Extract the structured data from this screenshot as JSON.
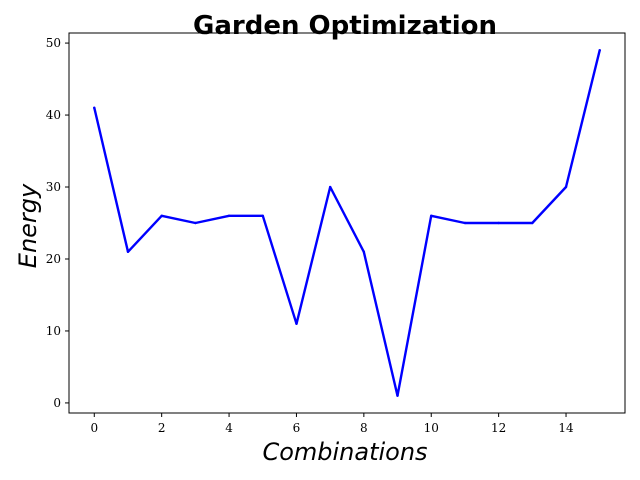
{
  "chart_data": {
    "type": "line",
    "title": "Garden Optimization",
    "xlabel": "Combinations",
    "ylabel": "Energy",
    "xlim": [
      -0.75,
      15.75
    ],
    "ylim": [
      -1.4,
      51.4
    ],
    "xticks": [
      0,
      2,
      4,
      6,
      8,
      10,
      12,
      14
    ],
    "yticks": [
      0,
      10,
      20,
      30,
      40,
      50
    ],
    "grid": false,
    "series": [
      {
        "color": "#0000ff",
        "x": [
          0,
          1,
          2,
          3,
          4,
          5,
          6,
          7,
          8,
          9,
          10,
          11,
          12,
          13,
          14,
          15
        ],
        "y": [
          41,
          21,
          26,
          25,
          26,
          26,
          11,
          30,
          21,
          1,
          26,
          25,
          25,
          25,
          30,
          49
        ]
      }
    ]
  }
}
